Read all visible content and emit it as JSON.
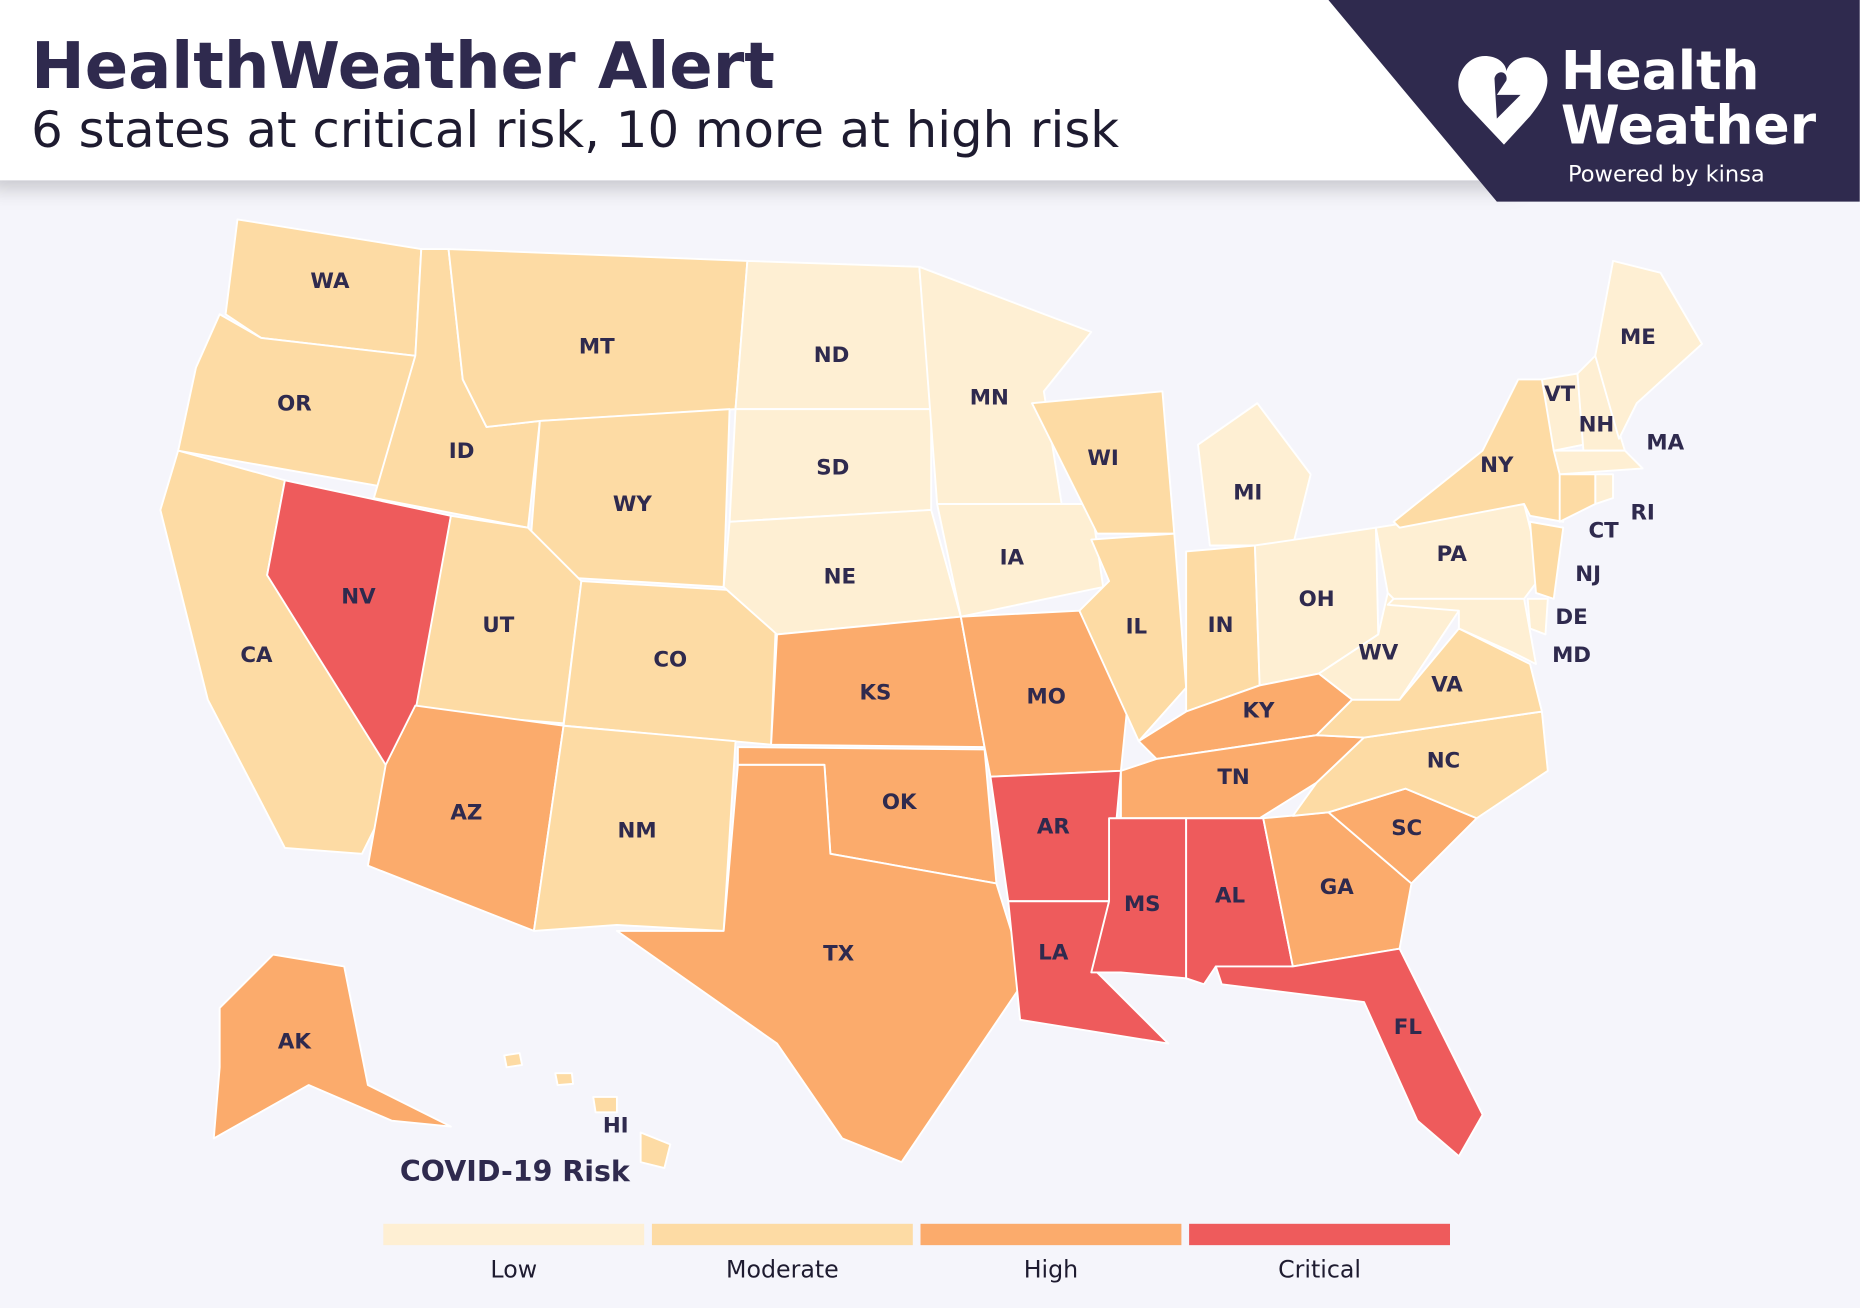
{
  "header": {
    "title": "HealthWeather Alert",
    "subtitle": "6 states at critical risk, 10 more at high risk"
  },
  "logo": {
    "line1": "Health",
    "line2": "Weather",
    "tagline": "Powered by kinsa"
  },
  "legend": {
    "title": "COVID-19 Risk",
    "levels": [
      {
        "label": "Low",
        "color": "#feefd3"
      },
      {
        "label": "Moderate",
        "color": "#fddba4"
      },
      {
        "label": "High",
        "color": "#fbab6c"
      },
      {
        "label": "Critical",
        "color": "#ee5b5c"
      }
    ]
  },
  "states": [
    {
      "code": "WA",
      "risk": "Moderate"
    },
    {
      "code": "OR",
      "risk": "Moderate"
    },
    {
      "code": "CA",
      "risk": "Moderate"
    },
    {
      "code": "NV",
      "risk": "Critical"
    },
    {
      "code": "ID",
      "risk": "Moderate"
    },
    {
      "code": "MT",
      "risk": "Moderate"
    },
    {
      "code": "WY",
      "risk": "Moderate"
    },
    {
      "code": "UT",
      "risk": "Moderate"
    },
    {
      "code": "CO",
      "risk": "Moderate"
    },
    {
      "code": "AZ",
      "risk": "High"
    },
    {
      "code": "NM",
      "risk": "Moderate"
    },
    {
      "code": "ND",
      "risk": "Low"
    },
    {
      "code": "SD",
      "risk": "Low"
    },
    {
      "code": "NE",
      "risk": "Low"
    },
    {
      "code": "KS",
      "risk": "High"
    },
    {
      "code": "OK",
      "risk": "High"
    },
    {
      "code": "TX",
      "risk": "High"
    },
    {
      "code": "MN",
      "risk": "Low"
    },
    {
      "code": "IA",
      "risk": "Low"
    },
    {
      "code": "MO",
      "risk": "High"
    },
    {
      "code": "AR",
      "risk": "Critical"
    },
    {
      "code": "LA",
      "risk": "Critical"
    },
    {
      "code": "WI",
      "risk": "Moderate"
    },
    {
      "code": "IL",
      "risk": "Moderate"
    },
    {
      "code": "MI",
      "risk": "Low"
    },
    {
      "code": "IN",
      "risk": "Moderate"
    },
    {
      "code": "OH",
      "risk": "Low"
    },
    {
      "code": "KY",
      "risk": "High"
    },
    {
      "code": "TN",
      "risk": "High"
    },
    {
      "code": "MS",
      "risk": "Critical"
    },
    {
      "code": "AL",
      "risk": "Critical"
    },
    {
      "code": "GA",
      "risk": "High"
    },
    {
      "code": "FL",
      "risk": "Critical"
    },
    {
      "code": "SC",
      "risk": "High"
    },
    {
      "code": "NC",
      "risk": "Moderate"
    },
    {
      "code": "VA",
      "risk": "Moderate"
    },
    {
      "code": "WV",
      "risk": "Low"
    },
    {
      "code": "PA",
      "risk": "Low"
    },
    {
      "code": "NY",
      "risk": "Moderate"
    },
    {
      "code": "VT",
      "risk": "Low"
    },
    {
      "code": "NH",
      "risk": "Low"
    },
    {
      "code": "ME",
      "risk": "Low"
    },
    {
      "code": "MA",
      "risk": "Low"
    },
    {
      "code": "RI",
      "risk": "Low"
    },
    {
      "code": "CT",
      "risk": "Moderate"
    },
    {
      "code": "NJ",
      "risk": "Moderate"
    },
    {
      "code": "DE",
      "risk": "Low"
    },
    {
      "code": "MD",
      "risk": "Low"
    },
    {
      "code": "AK",
      "risk": "High"
    },
    {
      "code": "HI",
      "risk": "Moderate"
    }
  ]
}
